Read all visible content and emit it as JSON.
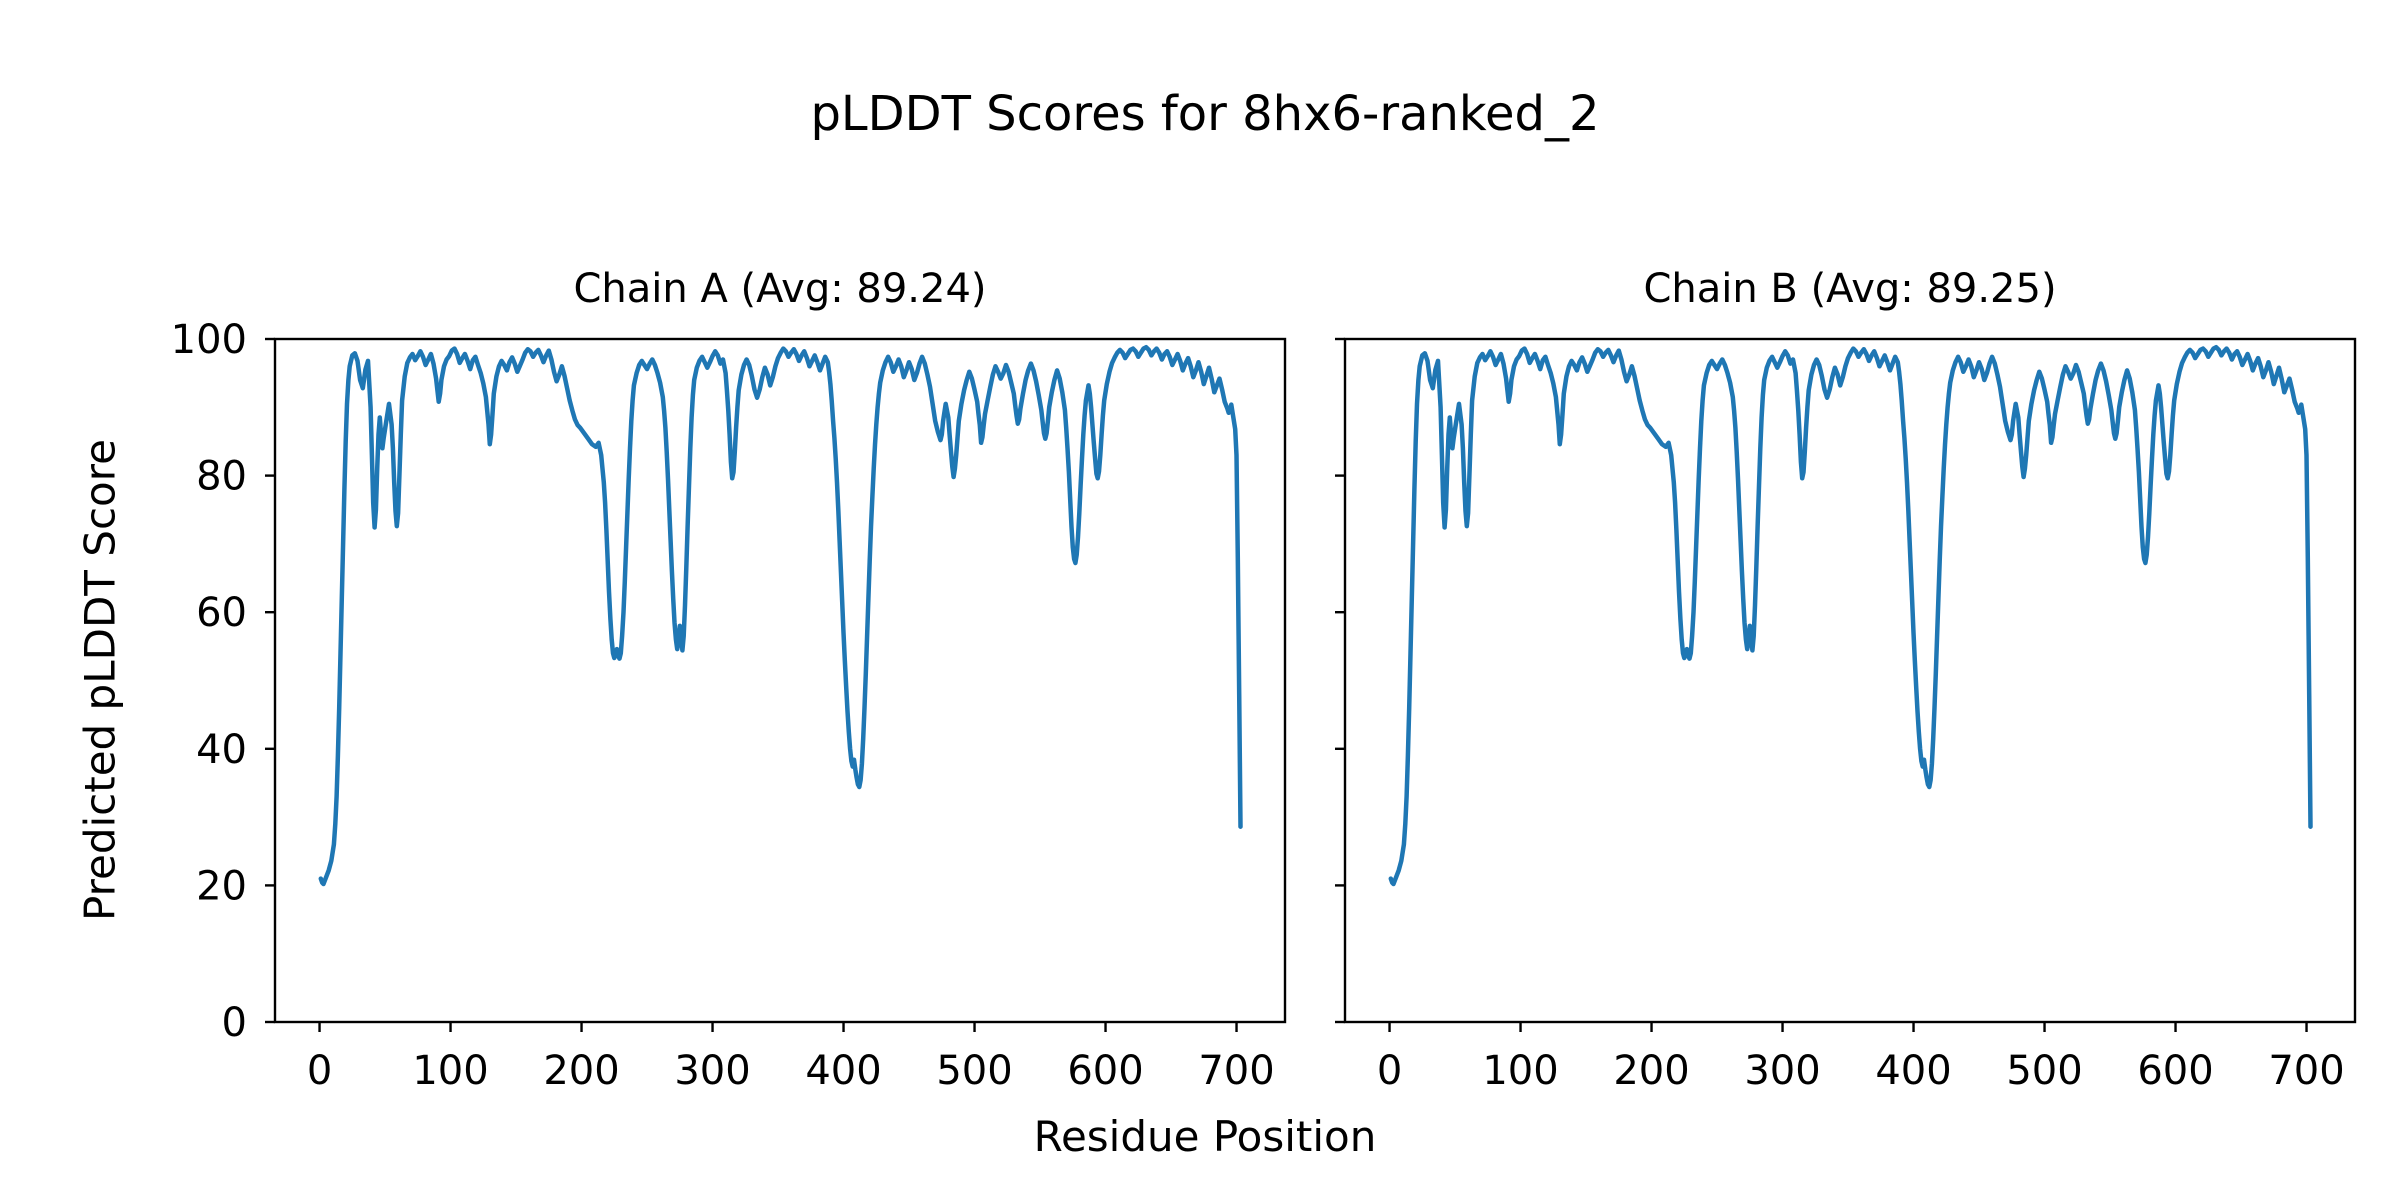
{
  "chart_data": {
    "type": "line",
    "title": "pLDDT Scores for 8hx6-ranked_2",
    "xlabel": "Residue Position",
    "ylabel": "Predicted pLDDT Score",
    "xticks": [
      0,
      100,
      200,
      300,
      400,
      500,
      600,
      700
    ],
    "yticks": [
      0,
      20,
      40,
      60,
      80,
      100
    ],
    "xlim": [
      -34,
      737
    ],
    "ylim": [
      0,
      100
    ],
    "grid": false,
    "legend": "none",
    "line_color": "#1f77b4",
    "axis_color": "#000000",
    "subplots": [
      {
        "chain": "A",
        "avg": 89.24,
        "title": "Chain A (Avg: 89.24)"
      },
      {
        "chain": "B",
        "avg": 89.25,
        "title": "Chain B (Avg: 89.25)"
      }
    ],
    "note": "Both chains show visually identical pLDDT traces over residues 1-703",
    "points": [
      [
        1,
        21
      ],
      [
        2,
        20.4
      ],
      [
        3,
        20.2
      ],
      [
        4,
        20.7
      ],
      [
        5,
        21.2
      ],
      [
        7,
        22.2
      ],
      [
        9,
        23.6
      ],
      [
        11,
        26
      ],
      [
        12,
        29
      ],
      [
        13,
        33
      ],
      [
        14,
        39
      ],
      [
        15,
        46
      ],
      [
        16,
        54
      ],
      [
        17,
        62
      ],
      [
        18,
        70
      ],
      [
        19,
        78
      ],
      [
        20,
        85
      ],
      [
        21,
        90.5
      ],
      [
        22,
        94
      ],
      [
        23,
        96
      ],
      [
        25,
        97.6
      ],
      [
        27,
        97.9
      ],
      [
        29,
        96.8
      ],
      [
        31,
        94
      ],
      [
        33,
        92.8
      ],
      [
        35,
        95.5
      ],
      [
        37,
        96.8
      ],
      [
        39,
        90
      ],
      [
        40,
        83
      ],
      [
        41,
        76
      ],
      [
        42,
        72.4
      ],
      [
        43,
        75
      ],
      [
        44,
        81
      ],
      [
        45,
        86
      ],
      [
        46,
        88.5
      ],
      [
        47,
        86
      ],
      [
        48,
        84
      ],
      [
        49,
        85.5
      ],
      [
        51,
        88
      ],
      [
        53,
        90.5
      ],
      [
        55,
        87.5
      ],
      [
        56,
        84
      ],
      [
        57,
        79
      ],
      [
        58,
        74.8
      ],
      [
        59,
        72.6
      ],
      [
        60,
        74.5
      ],
      [
        61,
        80
      ],
      [
        62,
        86
      ],
      [
        63,
        91
      ],
      [
        65,
        94.5
      ],
      [
        67,
        96.5
      ],
      [
        69,
        97.3
      ],
      [
        71,
        97.8
      ],
      [
        73,
        96.9
      ],
      [
        75,
        97.5
      ],
      [
        77,
        98.2
      ],
      [
        79,
        97.4
      ],
      [
        81,
        96.2
      ],
      [
        83,
        97
      ],
      [
        85,
        97.8
      ],
      [
        87,
        96.4
      ],
      [
        89,
        94.2
      ],
      [
        90,
        92.5
      ],
      [
        91,
        90.8
      ],
      [
        92,
        92
      ],
      [
        93,
        94
      ],
      [
        95,
        96
      ],
      [
        97,
        97
      ],
      [
        99,
        97.5
      ],
      [
        101,
        98.3
      ],
      [
        103,
        98.6
      ],
      [
        105,
        97.8
      ],
      [
        107,
        96.5
      ],
      [
        109,
        97.2
      ],
      [
        111,
        97.8
      ],
      [
        113,
        96.8
      ],
      [
        115,
        95.6
      ],
      [
        117,
        96.9
      ],
      [
        119,
        97.4
      ],
      [
        121,
        96.2
      ],
      [
        123,
        95
      ],
      [
        125,
        93.5
      ],
      [
        127,
        91.5
      ],
      [
        129,
        87.5
      ],
      [
        130,
        84.6
      ],
      [
        131,
        86
      ],
      [
        132,
        89
      ],
      [
        133,
        92
      ],
      [
        135,
        94.5
      ],
      [
        137,
        96
      ],
      [
        139,
        96.8
      ],
      [
        141,
        96.2
      ],
      [
        143,
        95.4
      ],
      [
        145,
        96.6
      ],
      [
        147,
        97.3
      ],
      [
        149,
        96.4
      ],
      [
        151,
        95.2
      ],
      [
        153,
        96.1
      ],
      [
        155,
        97
      ],
      [
        157,
        98
      ],
      [
        159,
        98.5
      ],
      [
        161,
        98.2
      ],
      [
        163,
        97.4
      ],
      [
        165,
        98
      ],
      [
        167,
        98.4
      ],
      [
        169,
        97.6
      ],
      [
        171,
        96.6
      ],
      [
        173,
        97.6
      ],
      [
        175,
        98.3
      ],
      [
        177,
        97
      ],
      [
        179,
        95.2
      ],
      [
        181,
        93.8
      ],
      [
        183,
        94.8
      ],
      [
        185,
        96
      ],
      [
        187,
        94.6
      ],
      [
        189,
        92.8
      ],
      [
        191,
        91
      ],
      [
        193,
        89.5
      ],
      [
        195,
        88.2
      ],
      [
        197,
        87.4
      ],
      [
        199,
        87
      ],
      [
        202,
        86.2
      ],
      [
        205,
        85.4
      ],
      [
        208,
        84.6
      ],
      [
        211,
        84.2
      ],
      [
        213,
        84.8
      ],
      [
        215,
        83
      ],
      [
        216,
        81
      ],
      [
        217,
        79
      ],
      [
        218,
        76
      ],
      [
        219,
        72
      ],
      [
        220,
        67.5
      ],
      [
        221,
        63
      ],
      [
        222,
        59
      ],
      [
        223,
        56
      ],
      [
        224,
        54
      ],
      [
        225,
        53.3
      ],
      [
        226,
        53.8
      ],
      [
        227,
        54.6
      ],
      [
        228,
        53.6
      ],
      [
        229,
        53.2
      ],
      [
        230,
        54
      ],
      [
        231,
        56.5
      ],
      [
        232,
        60
      ],
      [
        233,
        64.5
      ],
      [
        234,
        69.5
      ],
      [
        235,
        74.5
      ],
      [
        236,
        79.5
      ],
      [
        237,
        84
      ],
      [
        238,
        88
      ],
      [
        239,
        91
      ],
      [
        240,
        93.2
      ],
      [
        242,
        95
      ],
      [
        244,
        96.2
      ],
      [
        246,
        96.8
      ],
      [
        248,
        96.2
      ],
      [
        250,
        95.6
      ],
      [
        252,
        96.4
      ],
      [
        254,
        97
      ],
      [
        256,
        96.2
      ],
      [
        258,
        95
      ],
      [
        260,
        93.6
      ],
      [
        262,
        91.5
      ],
      [
        263,
        89.5
      ],
      [
        264,
        87
      ],
      [
        265,
        83.5
      ],
      [
        266,
        79.5
      ],
      [
        267,
        75
      ],
      [
        268,
        70.5
      ],
      [
        269,
        66
      ],
      [
        270,
        62
      ],
      [
        271,
        58.5
      ],
      [
        272,
        56
      ],
      [
        273,
        54.6
      ],
      [
        274,
        55.8
      ],
      [
        275,
        58
      ],
      [
        276,
        56
      ],
      [
        277,
        54.4
      ],
      [
        278,
        56.5
      ],
      [
        279,
        61
      ],
      [
        280,
        66.5
      ],
      [
        281,
        72.5
      ],
      [
        282,
        78.5
      ],
      [
        283,
        84
      ],
      [
        284,
        88.5
      ],
      [
        285,
        91.8
      ],
      [
        286,
        94
      ],
      [
        288,
        95.8
      ],
      [
        290,
        96.8
      ],
      [
        292,
        97.4
      ],
      [
        294,
        96.6
      ],
      [
        296,
        95.8
      ],
      [
        298,
        96.6
      ],
      [
        300,
        97.5
      ],
      [
        302,
        98.2
      ],
      [
        304,
        97.6
      ],
      [
        306,
        96.4
      ],
      [
        308,
        97
      ],
      [
        310,
        95
      ],
      [
        311,
        92.5
      ],
      [
        312,
        89.5
      ],
      [
        313,
        86
      ],
      [
        314,
        82
      ],
      [
        315,
        79.6
      ],
      [
        316,
        80.5
      ],
      [
        317,
        83.5
      ],
      [
        318,
        87
      ],
      [
        319,
        90
      ],
      [
        320,
        92.5
      ],
      [
        322,
        94.8
      ],
      [
        324,
        96.2
      ],
      [
        326,
        97
      ],
      [
        328,
        96.2
      ],
      [
        330,
        94.6
      ],
      [
        332,
        92.6
      ],
      [
        334,
        91.4
      ],
      [
        336,
        92.6
      ],
      [
        338,
        94.4
      ],
      [
        340,
        95.8
      ],
      [
        342,
        94.8
      ],
      [
        344,
        93.2
      ],
      [
        346,
        94.4
      ],
      [
        348,
        96
      ],
      [
        350,
        97.2
      ],
      [
        352,
        98
      ],
      [
        354,
        98.6
      ],
      [
        356,
        98.2
      ],
      [
        358,
        97.4
      ],
      [
        360,
        98
      ],
      [
        362,
        98.5
      ],
      [
        364,
        97.8
      ],
      [
        366,
        96.8
      ],
      [
        368,
        97.6
      ],
      [
        370,
        98.2
      ],
      [
        372,
        97.2
      ],
      [
        374,
        96
      ],
      [
        376,
        96.8
      ],
      [
        378,
        97.6
      ],
      [
        380,
        96.6
      ],
      [
        382,
        95.4
      ],
      [
        384,
        96.4
      ],
      [
        386,
        97.4
      ],
      [
        388,
        96.6
      ],
      [
        389,
        95.2
      ],
      [
        390,
        93.4
      ],
      [
        391,
        91
      ],
      [
        392,
        88
      ],
      [
        393,
        85.5
      ],
      [
        394,
        82.5
      ],
      [
        395,
        79
      ],
      [
        396,
        75
      ],
      [
        397,
        70.5
      ],
      [
        398,
        66
      ],
      [
        399,
        61.5
      ],
      [
        400,
        57
      ],
      [
        401,
        53
      ],
      [
        402,
        49
      ],
      [
        403,
        45.5
      ],
      [
        404,
        42.5
      ],
      [
        405,
        40
      ],
      [
        406,
        38.2
      ],
      [
        407,
        37.4
      ],
      [
        408,
        38.4
      ],
      [
        409,
        37
      ],
      [
        410,
        35.8
      ],
      [
        411,
        34.8
      ],
      [
        412,
        34.4
      ],
      [
        413,
        35.4
      ],
      [
        414,
        37.8
      ],
      [
        415,
        41.5
      ],
      [
        416,
        46
      ],
      [
        417,
        51
      ],
      [
        418,
        56.5
      ],
      [
        419,
        62
      ],
      [
        420,
        67.5
      ],
      [
        421,
        72.5
      ],
      [
        422,
        77
      ],
      [
        423,
        81
      ],
      [
        424,
        84.5
      ],
      [
        425,
        87.5
      ],
      [
        426,
        90
      ],
      [
        427,
        92
      ],
      [
        428,
        93.6
      ],
      [
        430,
        95.4
      ],
      [
        432,
        96.6
      ],
      [
        434,
        97.4
      ],
      [
        436,
        96.6
      ],
      [
        438,
        95.2
      ],
      [
        440,
        96
      ],
      [
        442,
        97
      ],
      [
        444,
        96
      ],
      [
        446,
        94.4
      ],
      [
        448,
        95.4
      ],
      [
        450,
        96.6
      ],
      [
        452,
        95.6
      ],
      [
        454,
        94
      ],
      [
        456,
        95
      ],
      [
        458,
        96.4
      ],
      [
        460,
        97.4
      ],
      [
        462,
        96.4
      ],
      [
        464,
        94.8
      ],
      [
        466,
        93
      ],
      [
        468,
        90.5
      ],
      [
        470,
        88
      ],
      [
        472,
        86.4
      ],
      [
        474,
        85.2
      ],
      [
        475,
        86
      ],
      [
        476,
        88
      ],
      [
        478,
        90.5
      ],
      [
        480,
        88.5
      ],
      [
        481,
        86
      ],
      [
        482,
        83.5
      ],
      [
        483,
        81.3
      ],
      [
        484,
        79.8
      ],
      [
        485,
        81
      ],
      [
        486,
        83
      ],
      [
        487,
        85.5
      ],
      [
        488,
        88
      ],
      [
        490,
        90.5
      ],
      [
        492,
        92.5
      ],
      [
        494,
        94
      ],
      [
        496,
        95.2
      ],
      [
        498,
        94.2
      ],
      [
        500,
        92.6
      ],
      [
        502,
        90.8
      ],
      [
        503,
        89
      ],
      [
        504,
        87.4
      ],
      [
        505,
        84.8
      ],
      [
        506,
        85.6
      ],
      [
        507,
        87.4
      ],
      [
        508,
        89
      ],
      [
        510,
        91
      ],
      [
        512,
        93
      ],
      [
        514,
        94.8
      ],
      [
        516,
        96
      ],
      [
        518,
        95.2
      ],
      [
        520,
        94.2
      ],
      [
        522,
        95
      ],
      [
        524,
        96.2
      ],
      [
        526,
        95.2
      ],
      [
        528,
        93.6
      ],
      [
        530,
        92
      ],
      [
        531,
        90.4
      ],
      [
        532,
        88.8
      ],
      [
        533,
        87.6
      ],
      [
        534,
        88.2
      ],
      [
        535,
        89.8
      ],
      [
        537,
        92
      ],
      [
        539,
        94
      ],
      [
        541,
        95.4
      ],
      [
        543,
        96.4
      ],
      [
        545,
        95.4
      ],
      [
        547,
        93.8
      ],
      [
        549,
        91.8
      ],
      [
        551,
        89.6
      ],
      [
        552,
        87.8
      ],
      [
        553,
        86.2
      ],
      [
        554,
        85.4
      ],
      [
        555,
        86.2
      ],
      [
        556,
        88
      ],
      [
        557,
        90
      ],
      [
        559,
        92.2
      ],
      [
        561,
        94
      ],
      [
        563,
        95.4
      ],
      [
        565,
        94.2
      ],
      [
        567,
        92.2
      ],
      [
        569,
        89.6
      ],
      [
        570,
        87
      ],
      [
        571,
        84
      ],
      [
        572,
        80.5
      ],
      [
        573,
        76.5
      ],
      [
        574,
        72.5
      ],
      [
        575,
        69.5
      ],
      [
        576,
        67.8
      ],
      [
        577,
        67.2
      ],
      [
        578,
        68.4
      ],
      [
        579,
        71
      ],
      [
        580,
        74.5
      ],
      [
        581,
        78.5
      ],
      [
        582,
        82.5
      ],
      [
        583,
        86
      ],
      [
        584,
        88.8
      ],
      [
        585,
        91
      ],
      [
        587,
        93.2
      ],
      [
        588,
        92
      ],
      [
        589,
        90
      ],
      [
        590,
        87.5
      ],
      [
        591,
        85
      ],
      [
        592,
        82.5
      ],
      [
        593,
        80.3
      ],
      [
        594,
        79.6
      ],
      [
        595,
        80.6
      ],
      [
        596,
        83
      ],
      [
        597,
        86
      ],
      [
        598,
        88.8
      ],
      [
        599,
        91
      ],
      [
        601,
        93.4
      ],
      [
        603,
        95.2
      ],
      [
        605,
        96.5
      ],
      [
        607,
        97.3
      ],
      [
        609,
        98
      ],
      [
        611,
        98.4
      ],
      [
        613,
        98
      ],
      [
        615,
        97.2
      ],
      [
        617,
        97.8
      ],
      [
        619,
        98.4
      ],
      [
        621,
        98.6
      ],
      [
        623,
        98.2
      ],
      [
        625,
        97.4
      ],
      [
        627,
        98
      ],
      [
        629,
        98.6
      ],
      [
        631,
        98.8
      ],
      [
        633,
        98.4
      ],
      [
        635,
        97.6
      ],
      [
        637,
        98.2
      ],
      [
        639,
        98.6
      ],
      [
        641,
        98
      ],
      [
        643,
        97
      ],
      [
        645,
        97.8
      ],
      [
        647,
        98.2
      ],
      [
        649,
        97.4
      ],
      [
        651,
        96.2
      ],
      [
        653,
        97
      ],
      [
        655,
        97.8
      ],
      [
        657,
        96.8
      ],
      [
        659,
        95.4
      ],
      [
        661,
        96.4
      ],
      [
        663,
        97.2
      ],
      [
        665,
        96
      ],
      [
        667,
        94.4
      ],
      [
        669,
        95.4
      ],
      [
        671,
        96.6
      ],
      [
        673,
        95.2
      ],
      [
        675,
        93.4
      ],
      [
        677,
        94.6
      ],
      [
        679,
        95.8
      ],
      [
        681,
        94.2
      ],
      [
        683,
        92.2
      ],
      [
        685,
        93.2
      ],
      [
        687,
        94.2
      ],
      [
        689,
        92.6
      ],
      [
        691,
        90.8
      ],
      [
        693,
        89.8
      ],
      [
        694,
        89.2
      ],
      [
        695,
        89.6
      ],
      [
        696,
        90.4
      ],
      [
        697,
        89.2
      ],
      [
        698,
        88
      ],
      [
        699,
        86.8
      ],
      [
        700,
        83
      ],
      [
        701,
        68
      ],
      [
        702,
        48
      ],
      [
        703,
        28.6
      ]
    ]
  }
}
